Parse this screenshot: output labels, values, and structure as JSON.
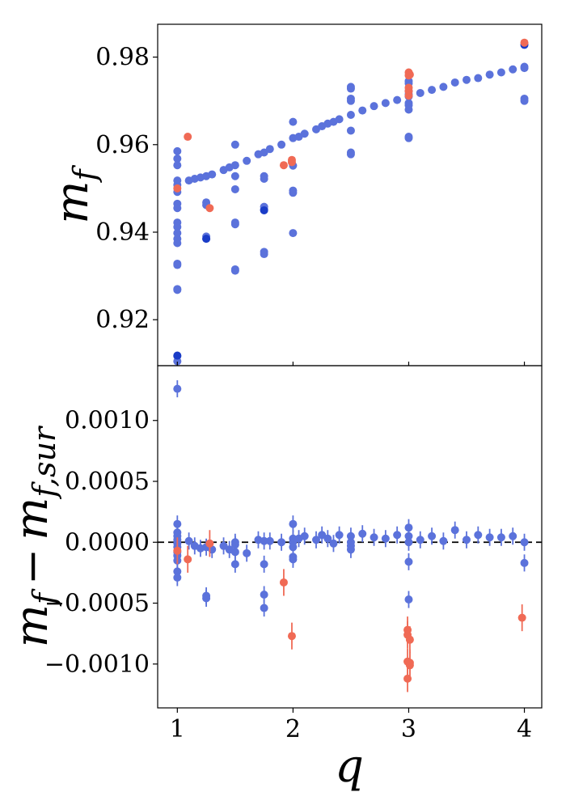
{
  "chart_data": {
    "type": "scatter",
    "colors": {
      "blue": "#5b72db",
      "dark_blue": "#1a3cc7",
      "red": "#f06a55",
      "zero_line": "#000000"
    },
    "top_panel": {
      "ylabel": "m_f",
      "ylabel_main": "m",
      "ylabel_sub": "f",
      "ylim": [
        0.9095,
        0.9875
      ],
      "yticks": [
        0.92,
        0.94,
        0.96,
        0.98
      ],
      "ytick_labels": [
        "0.92",
        "0.94",
        "0.96",
        "0.98"
      ],
      "series": [
        {
          "name": "blue",
          "color": "#5b72db",
          "points": [
            [
              1,
              0.9585
            ],
            [
              1,
              0.9568
            ],
            [
              1,
              0.9553
            ],
            [
              1,
              0.9518
            ],
            [
              1,
              0.9508
            ],
            [
              1,
              0.9492
            ],
            [
              1,
              0.9465
            ],
            [
              1,
              0.9455
            ],
            [
              1,
              0.9422
            ],
            [
              1,
              0.9412
            ],
            [
              1,
              0.9398
            ],
            [
              1,
              0.9385
            ],
            [
              1,
              0.9375
            ],
            [
              1,
              0.9328
            ],
            [
              1,
              0.9325
            ],
            [
              1,
              0.927
            ],
            [
              1,
              0.9268
            ],
            [
              1,
              0.9117
            ],
            [
              1,
              0.9105
            ],
            [
              1.1,
              0.9518
            ],
            [
              1.15,
              0.9522
            ],
            [
              1.2,
              0.9525
            ],
            [
              1.25,
              0.9528
            ],
            [
              1.3,
              0.9532
            ],
            [
              1.25,
              0.9468
            ],
            [
              1.25,
              0.9462
            ],
            [
              1.25,
              0.939
            ],
            [
              1.25,
              0.9385
            ],
            [
              1.4,
              0.9542
            ],
            [
              1.45,
              0.9548
            ],
            [
              1.5,
              0.9553
            ],
            [
              1.5,
              0.96
            ],
            [
              1.5,
              0.9528
            ],
            [
              1.5,
              0.9498
            ],
            [
              1.5,
              0.9422
            ],
            [
              1.5,
              0.9418
            ],
            [
              1.5,
              0.9315
            ],
            [
              1.5,
              0.9312
            ],
            [
              1.6,
              0.9563
            ],
            [
              1.7,
              0.9578
            ],
            [
              1.75,
              0.9582
            ],
            [
              1.8,
              0.959
            ],
            [
              1.9,
              0.96
            ],
            [
              1.75,
              0.9528
            ],
            [
              1.75,
              0.9522
            ],
            [
              1.75,
              0.9458
            ],
            [
              1.75,
              0.9452
            ],
            [
              1.75,
              0.9355
            ],
            [
              1.75,
              0.935
            ],
            [
              2,
              0.9652
            ],
            [
              2,
              0.9615
            ],
            [
              2,
              0.9552
            ],
            [
              2,
              0.9495
            ],
            [
              2,
              0.949
            ],
            [
              2,
              0.9398
            ],
            [
              2.05,
              0.9618
            ],
            [
              2.1,
              0.9625
            ],
            [
              2.2,
              0.9635
            ],
            [
              2.25,
              0.9642
            ],
            [
              2.3,
              0.9648
            ],
            [
              2.35,
              0.9652
            ],
            [
              2.4,
              0.9658
            ],
            [
              2.5,
              0.9732
            ],
            [
              2.5,
              0.9728
            ],
            [
              2.5,
              0.9705
            ],
            [
              2.5,
              0.97
            ],
            [
              2.5,
              0.9668
            ],
            [
              2.5,
              0.9632
            ],
            [
              2.5,
              0.9582
            ],
            [
              2.5,
              0.9578
            ],
            [
              2.6,
              0.9678
            ],
            [
              2.7,
              0.9688
            ],
            [
              2.8,
              0.9695
            ],
            [
              2.9,
              0.9702
            ],
            [
              3,
              0.9745
            ],
            [
              3,
              0.974
            ],
            [
              3,
              0.9722
            ],
            [
              3,
              0.9715
            ],
            [
              3,
              0.971
            ],
            [
              3,
              0.9695
            ],
            [
              3,
              0.969
            ],
            [
              3,
              0.968
            ],
            [
              3,
              0.9618
            ],
            [
              3,
              0.9615
            ],
            [
              3.1,
              0.9718
            ],
            [
              3.2,
              0.9725
            ],
            [
              3.3,
              0.9732
            ],
            [
              3.4,
              0.9742
            ],
            [
              3.5,
              0.9748
            ],
            [
              3.6,
              0.9752
            ],
            [
              3.7,
              0.976
            ],
            [
              3.8,
              0.9765
            ],
            [
              3.9,
              0.9772
            ],
            [
              4,
              0.9778
            ],
            [
              4,
              0.9775
            ],
            [
              4,
              0.9705
            ],
            [
              4,
              0.97
            ]
          ]
        },
        {
          "name": "dark_blue",
          "color": "#1a3cc7",
          "points": [
            [
              1,
              0.9118
            ],
            [
              1.25,
              0.9385
            ],
            [
              1.75,
              0.945
            ],
            [
              4,
              0.9828
            ]
          ]
        },
        {
          "name": "red",
          "color": "#f06a55",
          "points": [
            [
              1,
              0.95
            ],
            [
              1.09,
              0.9618
            ],
            [
              1.28,
              0.9455
            ],
            [
              1.92,
              0.9553
            ],
            [
              1.99,
              0.9565
            ],
            [
              1.99,
              0.956
            ],
            [
              3,
              0.9765
            ],
            [
              3,
              0.9758
            ],
            [
              3,
              0.973
            ],
            [
              3,
              0.9722
            ],
            [
              3,
              0.9712
            ],
            [
              3.01,
              0.976
            ],
            [
              4,
              0.9833
            ]
          ]
        }
      ]
    },
    "bottom_panel": {
      "ylabel": "m_f - m_{f,sur}",
      "ylabel_main": "m",
      "ylabel_sub": "f",
      "ylabel_op": "−",
      "ylabel_main2": "m",
      "ylabel_sub2": "f,sur",
      "xlabel": "q",
      "xlim": [
        0.83,
        4.15
      ],
      "ylim": [
        -0.00136,
        0.00145
      ],
      "xticks": [
        1,
        2,
        3,
        4
      ],
      "xtick_labels": [
        "1",
        "2",
        "3",
        "4"
      ],
      "yticks": [
        0.001,
        0.0005,
        0.0,
        -0.0005,
        -0.001
      ],
      "ytick_labels": [
        "0.0010",
        "0.0005",
        "0.0000",
        "−0.0005",
        "−0.0010"
      ],
      "zero_line": 0,
      "series": [
        {
          "name": "blue",
          "color": "#5b72db",
          "error": 7e-05,
          "points": [
            [
              1,
              0.00126
            ],
            [
              1,
              0.00015
            ],
            [
              1,
              8e-05
            ],
            [
              1,
              5e-05
            ],
            [
              1,
              2e-05
            ],
            [
              1,
              -1e-05
            ],
            [
              1,
              -4e-05
            ],
            [
              1,
              -8e-05
            ],
            [
              1,
              -0.00011
            ],
            [
              1,
              -0.00015
            ],
            [
              1,
              -0.00024
            ],
            [
              1,
              -0.00029
            ],
            [
              1.1,
              1e-05
            ],
            [
              1.15,
              -3e-05
            ],
            [
              1.2,
              -5e-05
            ],
            [
              1.25,
              -4e-05
            ],
            [
              1.3,
              -6e-05
            ],
            [
              1.25,
              -0.00044
            ],
            [
              1.25,
              -0.00046
            ],
            [
              1.4,
              -3e-05
            ],
            [
              1.45,
              -6e-05
            ],
            [
              1.5,
              0.0
            ],
            [
              1.5,
              -2e-05
            ],
            [
              1.5,
              -8e-05
            ],
            [
              1.5,
              -0.00018
            ],
            [
              1.6,
              -9e-05
            ],
            [
              1.7,
              2e-05
            ],
            [
              1.75,
              1e-05
            ],
            [
              1.8,
              1e-05
            ],
            [
              1.9,
              0.0
            ],
            [
              1.75,
              -0.00018
            ],
            [
              1.75,
              -0.00043
            ],
            [
              1.75,
              -0.00054
            ],
            [
              2,
              0.00015
            ],
            [
              2,
              3e-05
            ],
            [
              2,
              0.0
            ],
            [
              2,
              -4e-05
            ],
            [
              2,
              -0.00012
            ],
            [
              2,
              -0.00014
            ],
            [
              2.05,
              3e-05
            ],
            [
              2.1,
              5e-05
            ],
            [
              2.2,
              2e-05
            ],
            [
              2.25,
              6e-05
            ],
            [
              2.3,
              3e-05
            ],
            [
              2.35,
              -1e-05
            ],
            [
              2.4,
              6e-05
            ],
            [
              2.5,
              5e-05
            ],
            [
              2.5,
              0.0
            ],
            [
              2.5,
              -3e-05
            ],
            [
              2.5,
              -6e-05
            ],
            [
              2.6,
              7e-05
            ],
            [
              2.7,
              4e-05
            ],
            [
              2.8,
              3e-05
            ],
            [
              2.9,
              6e-05
            ],
            [
              3,
              0.00012
            ],
            [
              3,
              5e-05
            ],
            [
              3,
              0.0
            ],
            [
              3,
              -0.00016
            ],
            [
              3,
              -0.00047
            ],
            [
              3.1,
              2e-05
            ],
            [
              3.2,
              5e-05
            ],
            [
              3.3,
              1e-05
            ],
            [
              3.4,
              0.0001
            ],
            [
              3.5,
              2e-05
            ],
            [
              3.6,
              6e-05
            ],
            [
              3.7,
              4e-05
            ],
            [
              3.8,
              4e-05
            ],
            [
              3.9,
              5e-05
            ],
            [
              4,
              0.0
            ],
            [
              4,
              -0.00017
            ]
          ]
        },
        {
          "name": "red",
          "color": "#f06a55",
          "error": 0.00011,
          "points": [
            [
              1,
              -7e-05
            ],
            [
              1.09,
              -0.00014
            ],
            [
              1.28,
              -1e-05
            ],
            [
              1.92,
              -0.00033
            ],
            [
              1.99,
              -0.00077
            ],
            [
              2.99,
              -0.00072
            ],
            [
              2.99,
              -0.00076
            ],
            [
              2.99,
              -0.00098
            ],
            [
              2.99,
              -0.00112
            ],
            [
              3.01,
              -0.0008
            ],
            [
              3.01,
              -0.00099
            ],
            [
              3.01,
              -0.00101
            ],
            [
              3.98,
              -0.00062
            ]
          ]
        }
      ]
    }
  }
}
